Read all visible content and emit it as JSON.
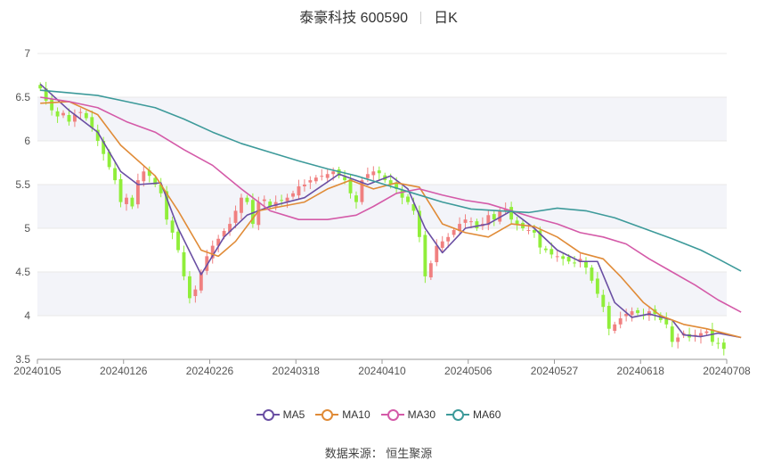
{
  "header": {
    "name": "泰豪科技 600590",
    "period": "日K"
  },
  "source_text": "数据来源：  恒生聚源",
  "colors": {
    "up": "#f08080",
    "down": "#90ee3a",
    "grid": "#e8e8e8",
    "band": "#f3f4f9"
  },
  "chart_data": {
    "type": "candlestick",
    "ylim": [
      3.5,
      7
    ],
    "yticks": [
      3.5,
      4,
      4.5,
      5,
      5.5,
      6,
      6.5,
      7
    ],
    "xticks": [
      "20240105",
      "20240126",
      "20240226",
      "20240318",
      "20240410",
      "20240506",
      "20240527",
      "20240618",
      "20240708"
    ],
    "close_start": 6.6,
    "closes": [
      6.6,
      6.46,
      6.35,
      6.28,
      6.32,
      6.22,
      6.3,
      6.33,
      6.26,
      6.15,
      6.0,
      5.85,
      5.7,
      5.55,
      5.3,
      5.35,
      5.25,
      5.55,
      5.65,
      5.6,
      5.5,
      5.4,
      5.1,
      4.95,
      4.75,
      4.45,
      4.2,
      4.3,
      4.5,
      4.68,
      4.8,
      4.88,
      4.97,
      5.05,
      5.2,
      5.35,
      5.3,
      5.05,
      5.3,
      5.33,
      5.25,
      5.3,
      5.32,
      5.35,
      5.4,
      5.48,
      5.5,
      5.55,
      5.58,
      5.6,
      5.62,
      5.65,
      5.6,
      5.55,
      5.4,
      5.3,
      5.55,
      5.62,
      5.65,
      5.63,
      5.55,
      5.5,
      5.45,
      5.35,
      5.3,
      5.2,
      4.9,
      4.45,
      4.6,
      4.8,
      4.85,
      4.9,
      4.98,
      5.05,
      5.1,
      5.08,
      5.0,
      5.05,
      5.15,
      5.1,
      5.2,
      5.22,
      5.1,
      5.05,
      5.0,
      4.98,
      4.95,
      4.78,
      4.75,
      4.7,
      4.68,
      4.65,
      4.62,
      4.6,
      4.65,
      4.55,
      4.4,
      4.25,
      4.1,
      3.85,
      3.9,
      3.97,
      4.02,
      4.05,
      4.03,
      4.0,
      4.05,
      4.02,
      3.95,
      3.9,
      3.7,
      3.75,
      3.8,
      3.75,
      3.78,
      3.8,
      3.82,
      3.7,
      3.68,
      3.62
    ],
    "ma_order": [
      "MA5",
      "MA10",
      "MA30",
      "MA60"
    ],
    "ma": {
      "MA5": {
        "name": "MA5",
        "color": "#6a4fa3",
        "points": [
          [
            0,
            6.65
          ],
          [
            5,
            6.35
          ],
          [
            10,
            6.1
          ],
          [
            14,
            5.65
          ],
          [
            17,
            5.5
          ],
          [
            21,
            5.52
          ],
          [
            24,
            5.0
          ],
          [
            28,
            4.47
          ],
          [
            32,
            4.9
          ],
          [
            36,
            5.15
          ],
          [
            40,
            5.25
          ],
          [
            46,
            5.35
          ],
          [
            52,
            5.62
          ],
          [
            57,
            5.5
          ],
          [
            61,
            5.6
          ],
          [
            64,
            5.45
          ],
          [
            67,
            5.0
          ],
          [
            70,
            4.72
          ],
          [
            74,
            5.0
          ],
          [
            78,
            5.05
          ],
          [
            82,
            5.2
          ],
          [
            86,
            5.0
          ],
          [
            90,
            4.75
          ],
          [
            94,
            4.62
          ],
          [
            97,
            4.62
          ],
          [
            100,
            4.15
          ],
          [
            103,
            3.98
          ],
          [
            106,
            4.02
          ],
          [
            110,
            3.95
          ],
          [
            112,
            3.78
          ],
          [
            115,
            3.76
          ],
          [
            118,
            3.8
          ],
          [
            122,
            3.75
          ]
        ]
      },
      "MA10": {
        "name": "MA10",
        "color": "#e08b37",
        "points": [
          [
            0,
            6.43
          ],
          [
            5,
            6.45
          ],
          [
            10,
            6.3
          ],
          [
            14,
            5.95
          ],
          [
            20,
            5.6
          ],
          [
            24,
            5.2
          ],
          [
            28,
            4.75
          ],
          [
            31,
            4.68
          ],
          [
            34,
            4.85
          ],
          [
            38,
            5.2
          ],
          [
            42,
            5.25
          ],
          [
            46,
            5.3
          ],
          [
            50,
            5.45
          ],
          [
            54,
            5.55
          ],
          [
            58,
            5.45
          ],
          [
            62,
            5.52
          ],
          [
            66,
            5.47
          ],
          [
            70,
            5.05
          ],
          [
            74,
            4.95
          ],
          [
            78,
            4.9
          ],
          [
            82,
            5.05
          ],
          [
            86,
            5.02
          ],
          [
            90,
            4.9
          ],
          [
            94,
            4.72
          ],
          [
            98,
            4.65
          ],
          [
            101,
            4.45
          ],
          [
            105,
            4.15
          ],
          [
            108,
            4.0
          ],
          [
            112,
            3.9
          ],
          [
            116,
            3.85
          ],
          [
            122,
            3.75
          ]
        ]
      },
      "MA30": {
        "name": "MA30",
        "color": "#d45aa8",
        "points": [
          [
            0,
            6.5
          ],
          [
            5,
            6.45
          ],
          [
            10,
            6.38
          ],
          [
            15,
            6.22
          ],
          [
            20,
            6.1
          ],
          [
            25,
            5.9
          ],
          [
            30,
            5.72
          ],
          [
            35,
            5.45
          ],
          [
            40,
            5.2
          ],
          [
            45,
            5.1
          ],
          [
            50,
            5.1
          ],
          [
            55,
            5.15
          ],
          [
            58,
            5.25
          ],
          [
            62,
            5.4
          ],
          [
            66,
            5.45
          ],
          [
            70,
            5.38
          ],
          [
            74,
            5.32
          ],
          [
            78,
            5.28
          ],
          [
            82,
            5.2
          ],
          [
            86,
            5.12
          ],
          [
            90,
            5.05
          ],
          [
            94,
            4.95
          ],
          [
            98,
            4.9
          ],
          [
            102,
            4.82
          ],
          [
            106,
            4.65
          ],
          [
            110,
            4.5
          ],
          [
            114,
            4.35
          ],
          [
            118,
            4.18
          ],
          [
            122,
            4.04
          ]
        ]
      },
      "MA60": {
        "name": "MA60",
        "color": "#3d9a9a",
        "points": [
          [
            0,
            6.58
          ],
          [
            5,
            6.55
          ],
          [
            10,
            6.52
          ],
          [
            15,
            6.45
          ],
          [
            20,
            6.38
          ],
          [
            25,
            6.25
          ],
          [
            30,
            6.1
          ],
          [
            35,
            5.97
          ],
          [
            40,
            5.87
          ],
          [
            45,
            5.77
          ],
          [
            50,
            5.68
          ],
          [
            55,
            5.6
          ],
          [
            60,
            5.5
          ],
          [
            65,
            5.4
          ],
          [
            70,
            5.3
          ],
          [
            75,
            5.22
          ],
          [
            80,
            5.2
          ],
          [
            85,
            5.18
          ],
          [
            90,
            5.23
          ],
          [
            95,
            5.2
          ],
          [
            100,
            5.12
          ],
          [
            105,
            5.0
          ],
          [
            110,
            4.88
          ],
          [
            115,
            4.75
          ],
          [
            118,
            4.65
          ],
          [
            122,
            4.51
          ]
        ]
      }
    }
  }
}
